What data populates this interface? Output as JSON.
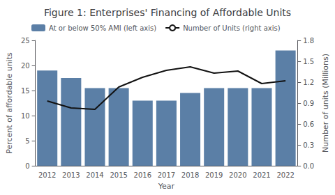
{
  "chart_data": {
    "type": "bar",
    "title": "Figure 1: Enterprises' Financing of Affordable Units",
    "xlabel": "Year",
    "ylabel": "Percent of affordable units",
    "y2label": "Number of units (Millions)",
    "categories": [
      "2012",
      "2013",
      "2014",
      "2015",
      "2016",
      "2017",
      "2018",
      "2019",
      "2020",
      "2021",
      "2022"
    ],
    "series": [
      {
        "name": "At or below 50% AMI (left axis)",
        "type": "bar",
        "color": "#5b7fa6",
        "values": [
          19.0,
          17.5,
          15.5,
          15.5,
          13.0,
          13.0,
          14.5,
          15.5,
          15.5,
          15.5,
          23.0
        ]
      },
      {
        "name": "Number of Units (right axis)",
        "type": "line",
        "axis": "y2",
        "color": "#111111",
        "values": [
          0.93,
          0.83,
          0.81,
          1.13,
          1.27,
          1.37,
          1.42,
          1.33,
          1.36,
          1.18,
          1.22
        ]
      }
    ],
    "ylim": [
      0,
      25
    ],
    "yticks": [
      0,
      5,
      10,
      15,
      20,
      25
    ],
    "y2lim": [
      0.0,
      1.8
    ],
    "y2ticks": [
      {
        "value": 0.0,
        "label": "0.0"
      },
      0.3,
      0.6,
      0.9,
      1.2,
      1.5,
      1.8
    ],
    "grid": false,
    "legend": "upper left"
  }
}
